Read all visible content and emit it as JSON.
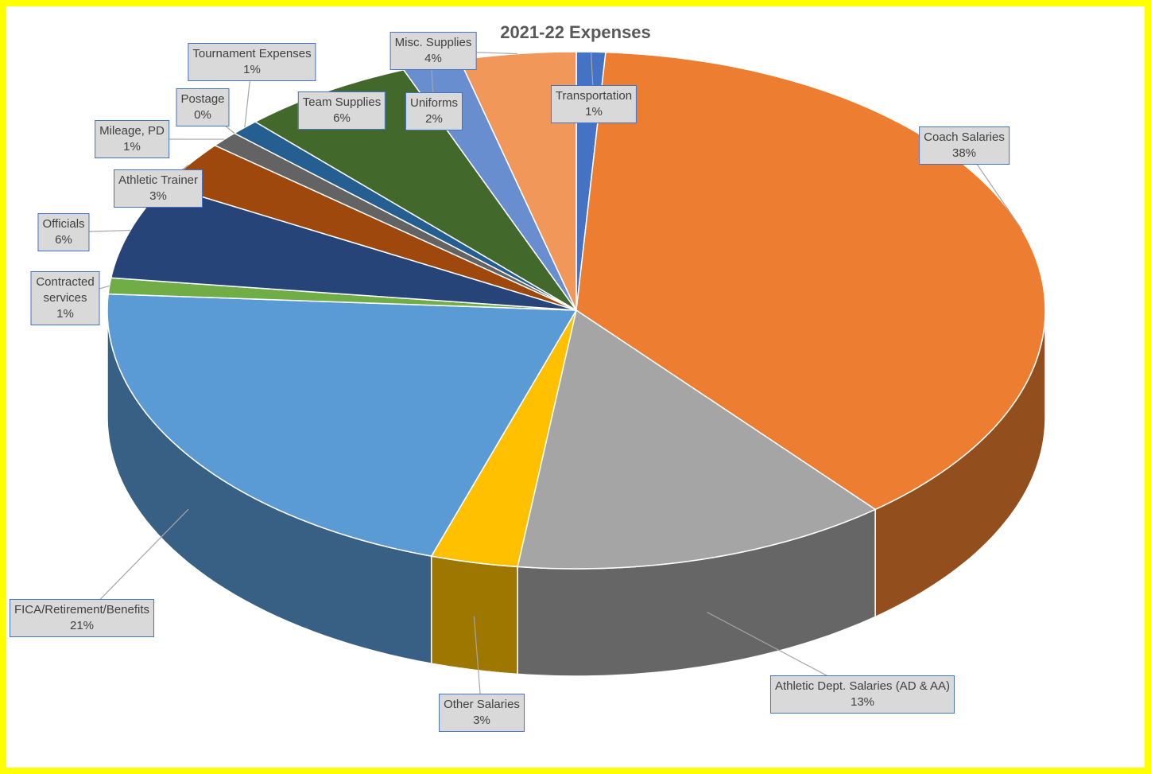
{
  "chart_data": {
    "type": "pie",
    "title": "2021-22 Expenses",
    "categories": [
      "Transportation",
      "Coach Salaries",
      "Athletic Dept. Salaries (AD & AA)",
      "Other Salaries",
      "FICA/Retirement/Benefits",
      "Contracted services",
      "Officials",
      "Athletic Trainer",
      "Mileage, PD",
      "Postage",
      "Tournament Expenses",
      "Team Supplies",
      "Uniforms",
      "Misc. Supplies"
    ],
    "values": [
      1,
      38,
      13,
      3,
      21,
      1,
      6,
      3,
      1,
      0,
      1,
      6,
      2,
      4
    ],
    "value_labels": [
      "1%",
      "38%",
      "13%",
      "3%",
      "21%",
      "1%",
      "6%",
      "3%",
      "1%",
      "0%",
      "1%",
      "6%",
      "2%",
      "4%"
    ],
    "colors": [
      "#4472c4",
      "#ed7d31",
      "#a5a5a5",
      "#ffc000",
      "#5b9bd5",
      "#70ad47",
      "#264478",
      "#9e480e",
      "#636363",
      "#997300",
      "#255e91",
      "#43682b",
      "#698ed0",
      "#f1975a"
    ]
  }
}
